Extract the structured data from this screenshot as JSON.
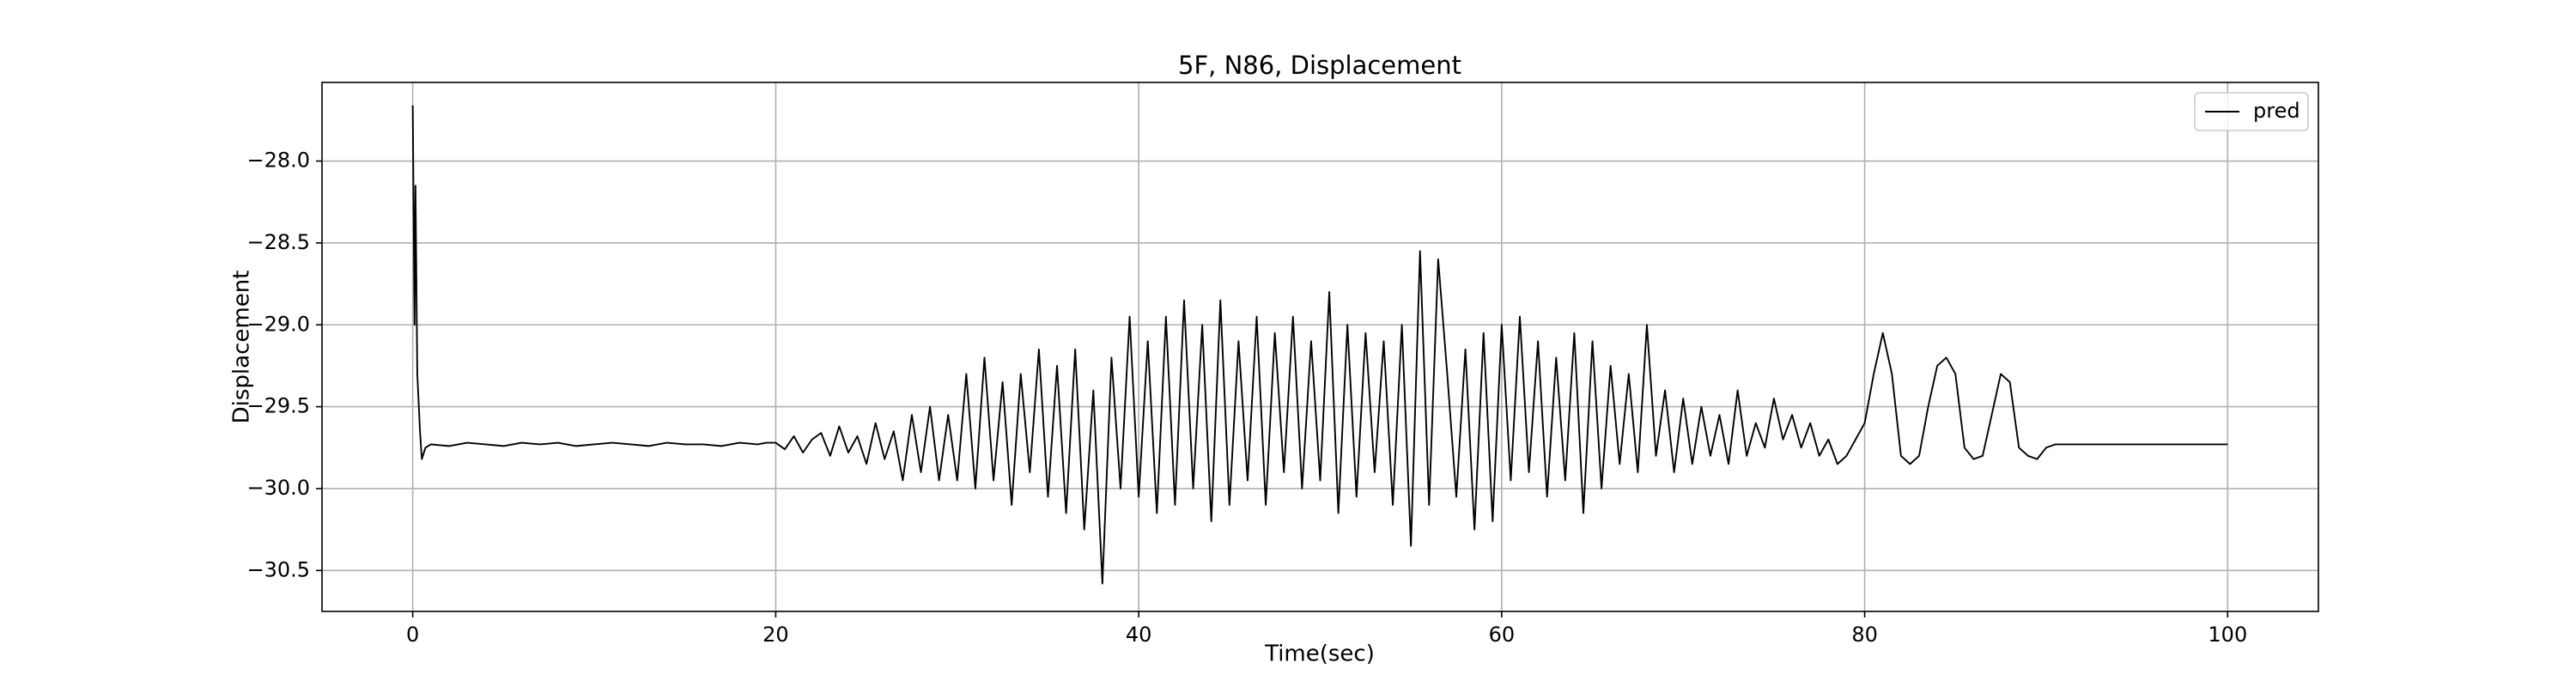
{
  "chart_data": {
    "type": "line",
    "title": "5F, N86, Displacement",
    "x_label": "Time(sec)",
    "y_label": "Displacement",
    "x": [
      0,
      0.1,
      0.15,
      0.25,
      0.4,
      0.5,
      0.7,
      1,
      2,
      3,
      4,
      5,
      6,
      7,
      8,
      9,
      10,
      11,
      12,
      13,
      14,
      15,
      16,
      17,
      18,
      19,
      19.5,
      20,
      20.5,
      21,
      21.5,
      22,
      22.5,
      23,
      23.5,
      24,
      24.5,
      25,
      25.5,
      26,
      26.5,
      27,
      27.5,
      28,
      28.5,
      29,
      29.5,
      30,
      30.5,
      31,
      31.5,
      32,
      32.5,
      33,
      33.5,
      34,
      34.5,
      35,
      35.5,
      36,
      36.5,
      37,
      37.5,
      38,
      38.5,
      39,
      39.5,
      40,
      40.5,
      41,
      41.5,
      42,
      42.5,
      43,
      43.5,
      44,
      44.5,
      45,
      45.5,
      46,
      46.5,
      47,
      47.5,
      48,
      48.5,
      49,
      49.5,
      50,
      50.5,
      51,
      51.5,
      52,
      52.5,
      53,
      53.5,
      54,
      54.5,
      55,
      55.5,
      56,
      56.5,
      57,
      57.5,
      58,
      58.5,
      59,
      59.5,
      60,
      60.5,
      61,
      61.5,
      62,
      62.5,
      63,
      63.5,
      64,
      64.5,
      65,
      65.5,
      66,
      66.5,
      67,
      67.5,
      68,
      68.5,
      69,
      69.5,
      70,
      70.5,
      71,
      71.5,
      72,
      72.5,
      73,
      73.5,
      74,
      74.5,
      75,
      75.5,
      76,
      76.5,
      77,
      77.5,
      78,
      78.5,
      79,
      79.5,
      80,
      80.5,
      81,
      81.5,
      82,
      82.5,
      83,
      83.5,
      84,
      84.5,
      85,
      85.5,
      86,
      86.5,
      87,
      87.5,
      88,
      88.5,
      89,
      89.5,
      90,
      90.5,
      100
    ],
    "series": [
      {
        "name": "pred",
        "color": "#000000",
        "values": [
          -27.66,
          -29.0,
          -28.15,
          -29.3,
          -29.65,
          -29.82,
          -29.75,
          -29.73,
          -29.74,
          -29.72,
          -29.73,
          -29.74,
          -29.72,
          -29.73,
          -29.72,
          -29.74,
          -29.73,
          -29.72,
          -29.73,
          -29.74,
          -29.72,
          -29.73,
          -29.73,
          -29.74,
          -29.72,
          -29.73,
          -29.72,
          -29.72,
          -29.76,
          -29.68,
          -29.78,
          -29.7,
          -29.66,
          -29.8,
          -29.62,
          -29.78,
          -29.68,
          -29.85,
          -29.6,
          -29.82,
          -29.65,
          -29.95,
          -29.55,
          -29.9,
          -29.5,
          -29.95,
          -29.55,
          -29.95,
          -29.3,
          -30.0,
          -29.2,
          -29.95,
          -29.35,
          -30.1,
          -29.3,
          -29.9,
          -29.15,
          -30.05,
          -29.25,
          -30.15,
          -29.15,
          -30.25,
          -29.4,
          -30.58,
          -29.2,
          -30.0,
          -28.95,
          -30.05,
          -29.1,
          -30.15,
          -28.95,
          -30.1,
          -28.85,
          -30.0,
          -29.0,
          -30.2,
          -28.85,
          -30.1,
          -29.1,
          -29.95,
          -28.95,
          -30.1,
          -29.05,
          -29.9,
          -28.95,
          -30.0,
          -29.1,
          -29.95,
          -28.8,
          -30.15,
          -29.0,
          -30.05,
          -29.05,
          -29.9,
          -29.1,
          -30.1,
          -29.0,
          -30.35,
          -28.55,
          -30.1,
          -28.6,
          -29.3,
          -30.05,
          -29.15,
          -30.25,
          -29.05,
          -30.2,
          -29.0,
          -29.95,
          -28.95,
          -29.9,
          -29.1,
          -30.05,
          -29.2,
          -29.95,
          -29.05,
          -30.15,
          -29.1,
          -30.0,
          -29.25,
          -29.85,
          -29.3,
          -29.9,
          -29.0,
          -29.8,
          -29.4,
          -29.9,
          -29.45,
          -29.85,
          -29.5,
          -29.8,
          -29.55,
          -29.85,
          -29.4,
          -29.8,
          -29.6,
          -29.75,
          -29.45,
          -29.7,
          -29.55,
          -29.75,
          -29.6,
          -29.8,
          -29.7,
          -29.85,
          -29.8,
          -29.7,
          -29.6,
          -29.3,
          -29.05,
          -29.3,
          -29.8,
          -29.85,
          -29.8,
          -29.5,
          -29.25,
          -29.2,
          -29.3,
          -29.75,
          -29.82,
          -29.8,
          -29.55,
          -29.3,
          -29.35,
          -29.75,
          -29.8,
          -29.82,
          -29.75,
          -29.73,
          -29.73
        ]
      }
    ],
    "xlim": [
      -5,
      105
    ],
    "ylim": [
      -30.75,
      -27.52
    ],
    "xticks": [
      0,
      20,
      40,
      60,
      80,
      100
    ],
    "yticks": [
      {
        "value": -30.5,
        "label": "−30.5"
      },
      {
        "value": -30.0,
        "label": "−30.0"
      },
      {
        "value": -29.5,
        "label": "−29.5"
      },
      {
        "value": -29.0,
        "label": "−29.0"
      },
      {
        "value": -28.5,
        "label": "−28.5"
      },
      {
        "value": -28.0,
        "label": "−28.0"
      }
    ],
    "grid": true,
    "legend": "upper right"
  }
}
